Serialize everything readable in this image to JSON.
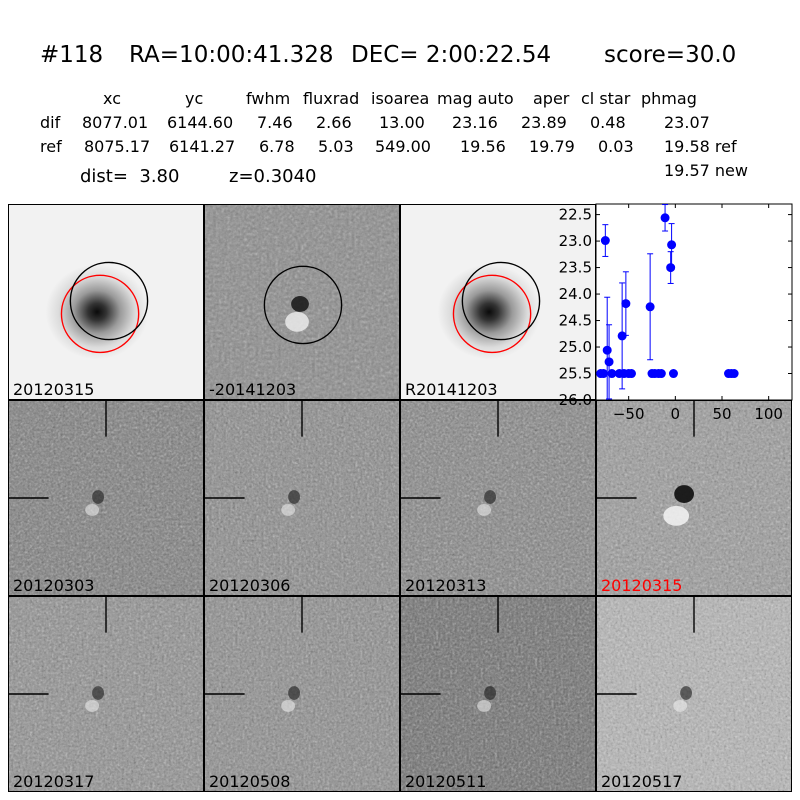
{
  "header": {
    "object_id": "#118",
    "ra": "RA=10:00:41.328",
    "dec": "DEC= 2:00:22.54",
    "score": "score=30.0"
  },
  "table": {
    "columns": [
      "xc",
      "yc",
      "fwhm",
      "fluxrad",
      "isoarea",
      "mag auto",
      "aper",
      "cl star",
      "phmag"
    ],
    "dif": {
      "label": "dif",
      "values": [
        "8077.01",
        "6144.60",
        "7.46",
        "2.66",
        "13.00",
        "23.16",
        "23.89",
        "0.48",
        "23.07"
      ]
    },
    "ref": {
      "label": "ref",
      "values": [
        "8075.17",
        "6141.27",
        "6.78",
        "5.03",
        "549.00",
        "19.56",
        "19.79",
        "0.03",
        "19.58 ref"
      ]
    },
    "new_phmag": "19.57 new"
  },
  "info": {
    "dist": "dist=  3.80",
    "z": "z=0.3040"
  },
  "top_panels": [
    {
      "label": "20120315",
      "kind": "galaxy"
    },
    {
      "label": "-20141203",
      "kind": "difference"
    },
    {
      "label": "R20141203",
      "kind": "galaxy"
    }
  ],
  "cutouts": [
    {
      "label": "20120303",
      "highlight": false
    },
    {
      "label": "20120306",
      "highlight": false
    },
    {
      "label": "20120313",
      "highlight": false
    },
    {
      "label": "20120315",
      "highlight": true
    },
    {
      "label": "20120317",
      "highlight": false
    },
    {
      "label": "20120508",
      "highlight": false
    },
    {
      "label": "20120511",
      "highlight": false
    },
    {
      "label": "20120517",
      "highlight": false
    }
  ],
  "colors": {
    "highlight_label": "#ff0000",
    "circle_ref": "#ff0000",
    "circle_new": "#000000",
    "points": "#0000ff"
  },
  "chart_data": {
    "type": "scatter",
    "title": "",
    "xlabel": "",
    "ylabel": "",
    "xlim": [
      -85,
      125
    ],
    "ylim": [
      26.0,
      22.3
    ],
    "y_inverted": true,
    "xticks": [
      -50,
      0,
      50,
      100
    ],
    "xtick_labels": [
      "−50",
      "0",
      "50",
      "100"
    ],
    "yticks": [
      22.5,
      23.0,
      23.5,
      24.0,
      24.5,
      25.0,
      25.5,
      26.0
    ],
    "ytick_labels": [
      "22.5",
      "23.0",
      "23.5",
      "24.0",
      "24.5",
      "25.0",
      "25.5",
      "26.0"
    ],
    "series": [
      {
        "points": [
          {
            "x": -80,
            "y": 25.5,
            "err": 0
          },
          {
            "x": -77,
            "y": 25.5,
            "err": 0
          },
          {
            "x": -75,
            "y": 22.99,
            "err": 0.3
          },
          {
            "x": -73,
            "y": 25.06,
            "err": 1.0
          },
          {
            "x": -71,
            "y": 25.28,
            "err": 0.7
          },
          {
            "x": -68,
            "y": 25.5,
            "err": 0
          },
          {
            "x": -60,
            "y": 25.5,
            "err": 0
          },
          {
            "x": -57,
            "y": 24.79,
            "err": 1.0
          },
          {
            "x": -55,
            "y": 25.5,
            "err": 0
          },
          {
            "x": -53,
            "y": 24.18,
            "err": 0.6
          },
          {
            "x": -50,
            "y": 25.5,
            "err": 0
          },
          {
            "x": -47,
            "y": 25.5,
            "err": 0
          },
          {
            "x": -27,
            "y": 24.24,
            "err": 1.0
          },
          {
            "x": -25,
            "y": 25.5,
            "err": 0
          },
          {
            "x": -22,
            "y": 25.5,
            "err": 0
          },
          {
            "x": -18,
            "y": 25.5,
            "err": 0
          },
          {
            "x": -15,
            "y": 25.5,
            "err": 0
          },
          {
            "x": -11,
            "y": 22.56,
            "err": 0.25
          },
          {
            "x": -5,
            "y": 23.5,
            "err": 0.3
          },
          {
            "x": -4,
            "y": 23.07,
            "err": 0.4
          },
          {
            "x": -2,
            "y": 25.5,
            "err": 0
          },
          {
            "x": 57,
            "y": 25.5,
            "err": 0
          },
          {
            "x": 60,
            "y": 25.5,
            "err": 0
          },
          {
            "x": 63,
            "y": 25.5,
            "err": 0
          }
        ]
      }
    ]
  }
}
